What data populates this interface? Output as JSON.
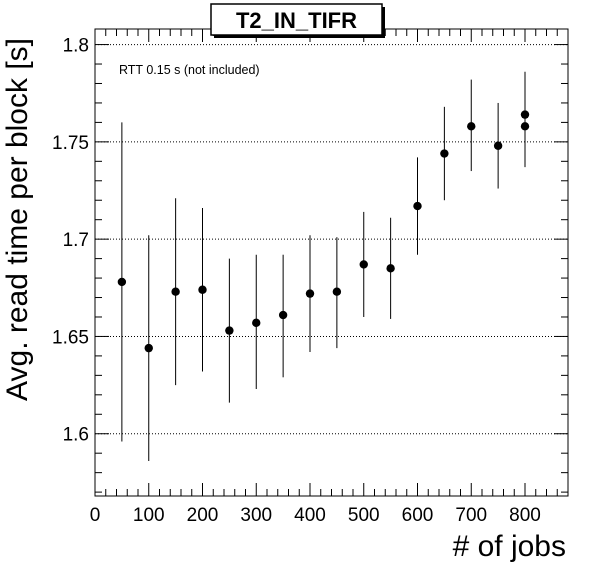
{
  "chart_data": {
    "type": "scatter",
    "title": "T2_IN_TIFR",
    "xlabel": "# of jobs",
    "ylabel": "Avg. read time per block [s]",
    "annotation": "RTT 0.15 s (not included)",
    "xlim": [
      0,
      880
    ],
    "ylim": [
      1.568,
      1.808
    ],
    "x_ticks": [
      0,
      100,
      200,
      300,
      400,
      500,
      600,
      700,
      800
    ],
    "x_tick_labels": [
      "0",
      "100",
      "200",
      "300",
      "400",
      "500",
      "600",
      "700",
      "800"
    ],
    "y_ticks": [
      1.6,
      1.65,
      1.7,
      1.75,
      1.8
    ],
    "y_tick_labels": [
      "1.6",
      "1.65",
      "1.7",
      "1.75",
      "1.8"
    ],
    "grid": {
      "x": false,
      "y": true,
      "style": "dotted"
    },
    "marker_color": "#000000",
    "points": [
      {
        "x": 50,
        "y": 1.678,
        "ylow": 1.596,
        "yhigh": 1.76
      },
      {
        "x": 100,
        "y": 1.644,
        "ylow": 1.586,
        "yhigh": 1.702
      },
      {
        "x": 150,
        "y": 1.673,
        "ylow": 1.625,
        "yhigh": 1.721
      },
      {
        "x": 200,
        "y": 1.674,
        "ylow": 1.632,
        "yhigh": 1.716
      },
      {
        "x": 250,
        "y": 1.653,
        "ylow": 1.616,
        "yhigh": 1.69
      },
      {
        "x": 300,
        "y": 1.657,
        "ylow": 1.623,
        "yhigh": 1.692
      },
      {
        "x": 350,
        "y": 1.661,
        "ylow": 1.629,
        "yhigh": 1.692
      },
      {
        "x": 400,
        "y": 1.672,
        "ylow": 1.642,
        "yhigh": 1.702
      },
      {
        "x": 450,
        "y": 1.673,
        "ylow": 1.644,
        "yhigh": 1.701
      },
      {
        "x": 500,
        "y": 1.687,
        "ylow": 1.66,
        "yhigh": 1.714
      },
      {
        "x": 550,
        "y": 1.685,
        "ylow": 1.659,
        "yhigh": 1.711
      },
      {
        "x": 600,
        "y": 1.717,
        "ylow": 1.692,
        "yhigh": 1.742
      },
      {
        "x": 650,
        "y": 1.744,
        "ylow": 1.72,
        "yhigh": 1.768
      },
      {
        "x": 700,
        "y": 1.758,
        "ylow": 1.735,
        "yhigh": 1.782
      },
      {
        "x": 750,
        "y": 1.748,
        "ylow": 1.726,
        "yhigh": 1.77
      },
      {
        "x": 800,
        "y": 1.764,
        "ylow": 1.743,
        "yhigh": 1.786
      },
      {
        "x": 800,
        "y": 1.758,
        "ylow": 1.737,
        "yhigh": 1.779
      }
    ]
  }
}
